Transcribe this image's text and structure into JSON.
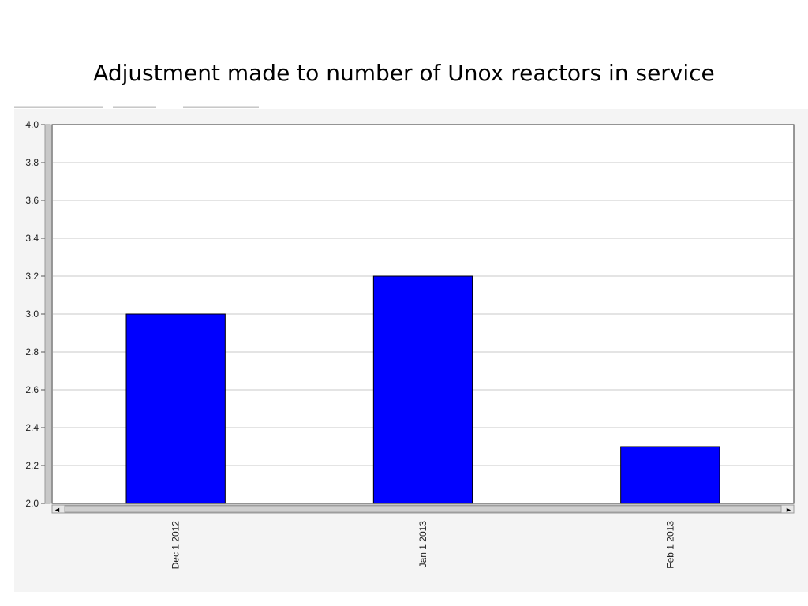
{
  "title": "Adjustment made to number of Unox reactors in service",
  "chart_data": {
    "type": "bar",
    "title": "Adjustment made to number of Unox reactors in service",
    "categories": [
      "Dec 1 2012",
      "Jan 1 2013",
      "Feb 1 2013"
    ],
    "values": [
      3.0,
      3.2,
      2.3
    ],
    "xlabel": "",
    "ylabel": "",
    "ylim": [
      2.0,
      4.0
    ],
    "yticks": [
      "4.0",
      "3.8",
      "3.6",
      "3.4",
      "3.2",
      "3.0",
      "2.8",
      "2.6",
      "2.4",
      "2.2",
      "2.0"
    ],
    "grid": true,
    "legend": "none",
    "bar_color": "#0000ff"
  },
  "scrollbar": {
    "left_arrow": "◄",
    "right_arrow": "►"
  }
}
